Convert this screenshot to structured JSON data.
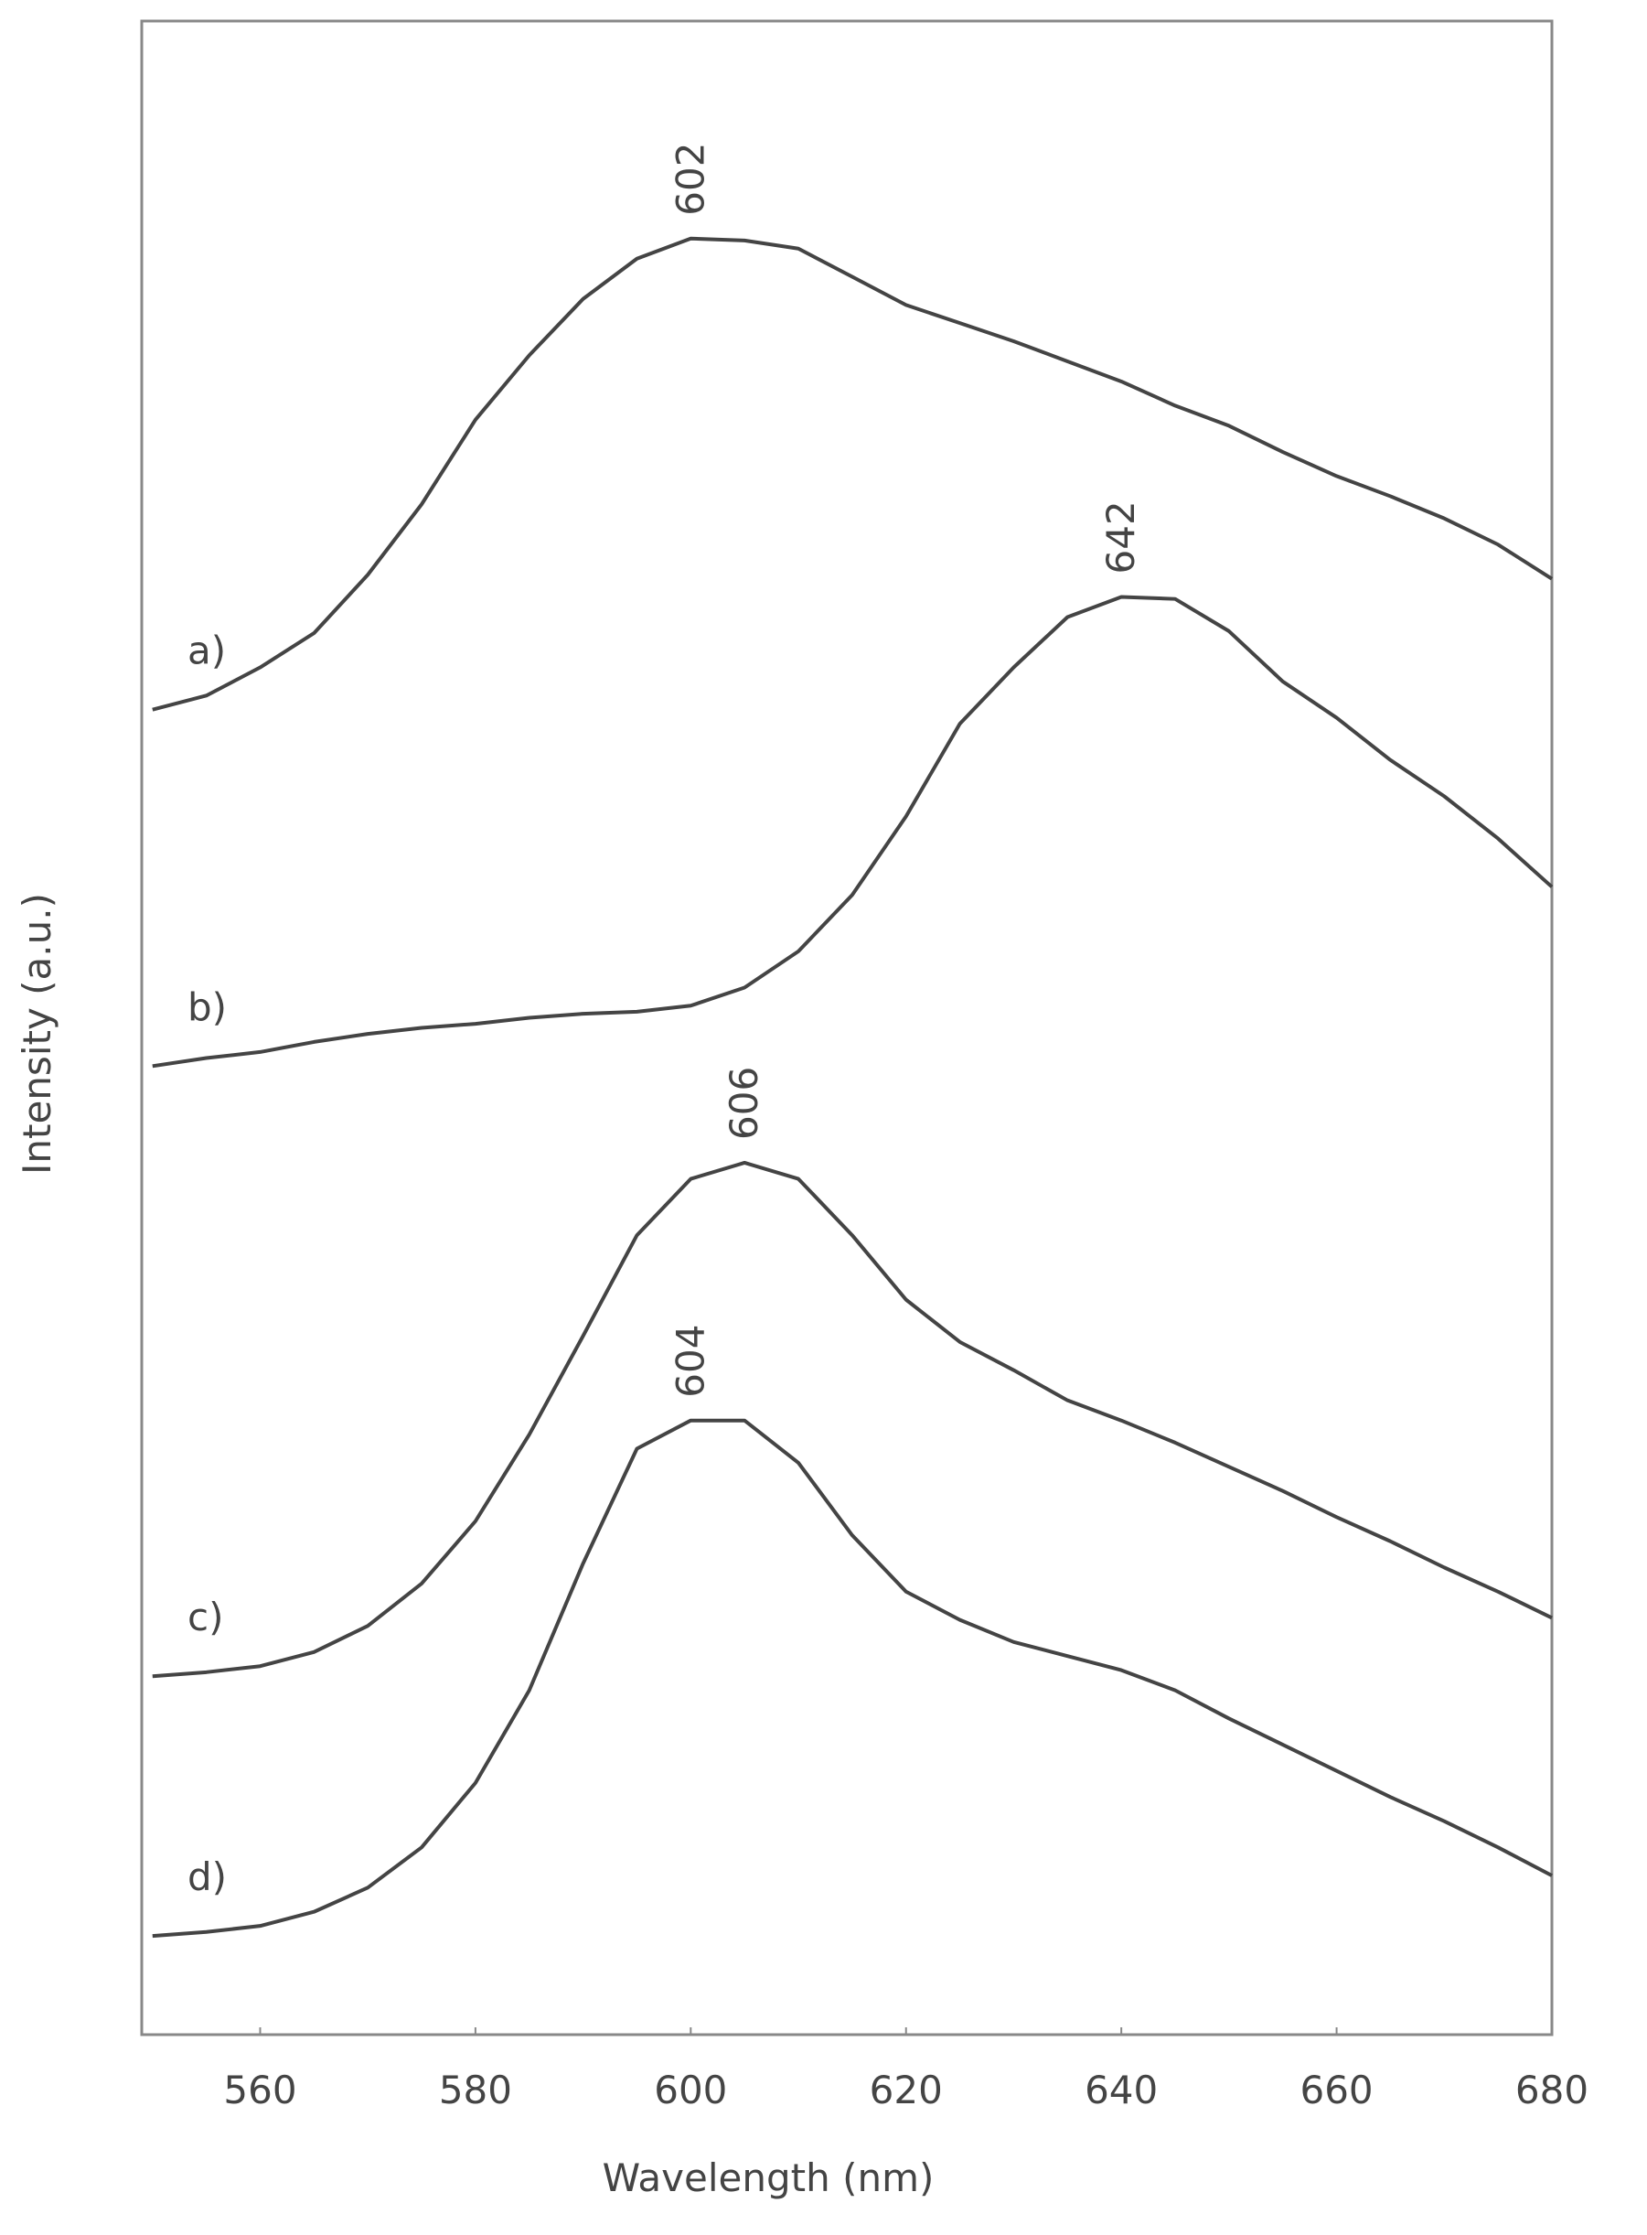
{
  "chart_data": {
    "type": "line",
    "x_label": "Wavelength (nm)",
    "y_label": "Intensity (a.u.)",
    "x": [
      550,
      555,
      560,
      565,
      570,
      575,
      580,
      585,
      590,
      595,
      600,
      605,
      610,
      615,
      620,
      625,
      630,
      635,
      640,
      645,
      650,
      655,
      660,
      665,
      670,
      675,
      680
    ],
    "series": [
      {
        "name": "a)",
        "peak_label": "602",
        "color": "#444444",
        "values": [
          65.8,
          66.5,
          67.9,
          69.6,
          72.5,
          76.0,
          80.2,
          83.4,
          86.2,
          88.2,
          89.2,
          89.1,
          88.7,
          87.3,
          85.9,
          85.0,
          84.1,
          83.1,
          82.1,
          80.9,
          79.9,
          78.6,
          77.4,
          76.4,
          75.3,
          74.0,
          72.3
        ]
      },
      {
        "name": "b)",
        "peak_label": "642",
        "color": "#444444",
        "values": [
          48.1,
          48.5,
          48.8,
          49.3,
          49.7,
          50.0,
          50.2,
          50.5,
          50.7,
          50.8,
          51.1,
          52.0,
          53.8,
          56.6,
          60.5,
          65.1,
          67.9,
          70.4,
          71.4,
          71.3,
          69.7,
          67.2,
          65.4,
          63.3,
          61.5,
          59.4,
          57.0
        ]
      },
      {
        "name": "c)",
        "peak_label": "606",
        "color": "#444444",
        "values": [
          17.8,
          18.0,
          18.3,
          19.0,
          20.3,
          22.4,
          25.5,
          29.8,
          34.7,
          39.7,
          42.5,
          43.3,
          42.5,
          39.7,
          36.5,
          34.4,
          33.0,
          31.5,
          30.5,
          29.4,
          28.2,
          27.0,
          25.7,
          24.5,
          23.2,
          22.0,
          20.7
        ]
      },
      {
        "name": "d)",
        "peak_label": "604",
        "color": "#444444",
        "values": [
          4.9,
          5.1,
          5.4,
          6.1,
          7.3,
          9.3,
          12.5,
          17.1,
          23.4,
          29.1,
          30.5,
          30.5,
          28.4,
          24.8,
          22.0,
          20.6,
          19.5,
          18.8,
          18.1,
          17.1,
          15.7,
          14.4,
          13.1,
          11.8,
          10.6,
          9.3,
          7.9
        ]
      }
    ],
    "xlim": [
      549,
      680
    ],
    "xticks": [
      560,
      580,
      600,
      620,
      640,
      660,
      680
    ],
    "ylim": [
      0,
      100
    ],
    "grid": false
  }
}
